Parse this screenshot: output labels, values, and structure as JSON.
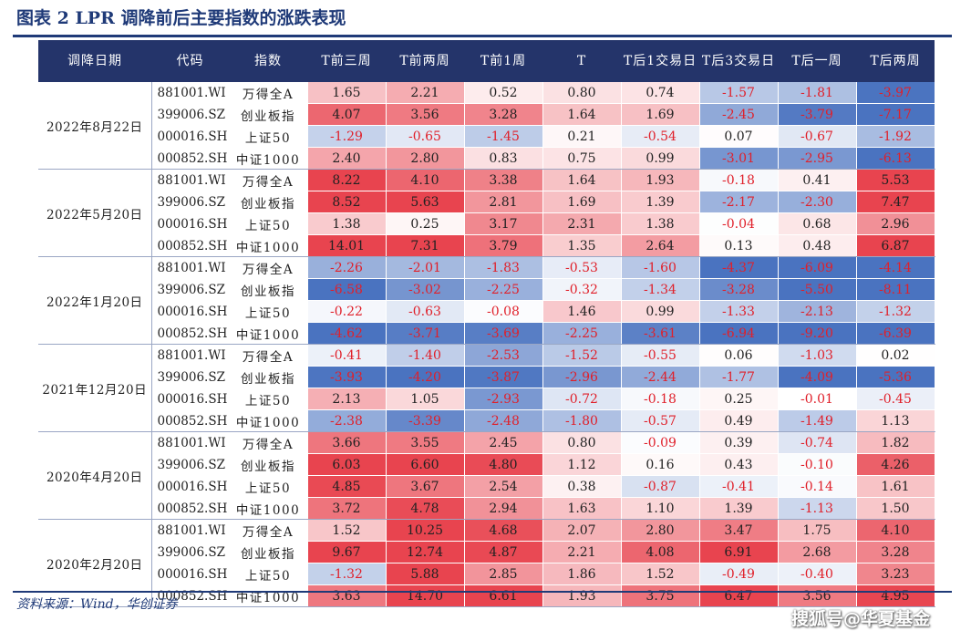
{
  "title": "图表 2  LPR 调降前后主要指数的涨跌表现",
  "headers": [
    "调降日期",
    "代码",
    "指数",
    "T前三周",
    "T前两周",
    "T前1周",
    "T",
    "T后1交易日",
    "T后3交易日",
    "T后一周",
    "T后两周"
  ],
  "groups": [
    {
      "date": "2022年8月22日",
      "rows": [
        {
          "code": "881001.WI",
          "name": "万得全A",
          "values": [
            "1.65",
            "2.21",
            "0.52",
            "0.80",
            "0.74",
            "-1.57",
            "-1.81",
            "-3.97"
          ]
        },
        {
          "code": "399006.SZ",
          "name": "创业板指",
          "values": [
            "4.07",
            "3.56",
            "3.28",
            "1.64",
            "1.69",
            "-2.45",
            "-3.79",
            "-7.17"
          ]
        },
        {
          "code": "000016.SH",
          "name": "上证50",
          "values": [
            "-1.29",
            "-0.65",
            "-1.45",
            "0.21",
            "-0.54",
            "0.07",
            "-0.67",
            "-1.92"
          ]
        },
        {
          "code": "000852.SH",
          "name": "中证1000",
          "values": [
            "2.40",
            "2.80",
            "0.83",
            "0.75",
            "0.99",
            "-3.01",
            "-2.95",
            "-6.13"
          ]
        }
      ]
    },
    {
      "date": "2022年5月20日",
      "rows": [
        {
          "code": "881001.WI",
          "name": "万得全A",
          "values": [
            "8.22",
            "4.10",
            "3.38",
            "1.64",
            "1.93",
            "-0.18",
            "0.41",
            "5.53"
          ]
        },
        {
          "code": "399006.SZ",
          "name": "创业板指",
          "values": [
            "8.52",
            "5.63",
            "2.81",
            "1.69",
            "1.39",
            "-2.17",
            "-2.30",
            "7.47"
          ]
        },
        {
          "code": "000016.SH",
          "name": "上证50",
          "values": [
            "1.38",
            "0.25",
            "3.17",
            "2.31",
            "1.38",
            "-0.04",
            "0.68",
            "2.96"
          ]
        },
        {
          "code": "000852.SH",
          "name": "中证1000",
          "values": [
            "14.01",
            "7.31",
            "3.79",
            "1.35",
            "2.64",
            "0.13",
            "0.48",
            "6.87"
          ]
        }
      ]
    },
    {
      "date": "2022年1月20日",
      "rows": [
        {
          "code": "881001.WI",
          "name": "万得全A",
          "values": [
            "-2.26",
            "-2.01",
            "-1.83",
            "-0.53",
            "-1.60",
            "-4.37",
            "-6.09",
            "-4.14"
          ]
        },
        {
          "code": "399006.SZ",
          "name": "创业板指",
          "values": [
            "-6.58",
            "-3.02",
            "-2.25",
            "-0.32",
            "-1.34",
            "-3.28",
            "-5.50",
            "-8.11"
          ]
        },
        {
          "code": "000016.SH",
          "name": "上证50",
          "values": [
            "-0.22",
            "-0.63",
            "-0.08",
            "1.46",
            "0.99",
            "-1.33",
            "-2.13",
            "-1.32"
          ]
        },
        {
          "code": "000852.SH",
          "name": "中证1000",
          "values": [
            "-4.62",
            "-3.71",
            "-3.69",
            "-2.25",
            "-3.61",
            "-6.94",
            "-9.20",
            "-6.39"
          ]
        }
      ]
    },
    {
      "date": "2021年12月20日",
      "rows": [
        {
          "code": "881001.WI",
          "name": "万得全A",
          "values": [
            "-0.41",
            "-1.40",
            "-2.53",
            "-1.52",
            "-0.55",
            "0.06",
            "-1.03",
            "0.02"
          ]
        },
        {
          "code": "399006.SZ",
          "name": "创业板指",
          "values": [
            "-3.93",
            "-4.20",
            "-3.87",
            "-2.96",
            "-2.44",
            "-1.77",
            "-4.09",
            "-5.36"
          ]
        },
        {
          "code": "000016.SH",
          "name": "上证50",
          "values": [
            "2.13",
            "1.05",
            "-2.93",
            "-0.72",
            "-0.18",
            "0.25",
            "-0.01",
            "-0.45"
          ]
        },
        {
          "code": "000852.SH",
          "name": "中证1000",
          "values": [
            "-2.38",
            "-3.39",
            "-2.48",
            "-1.80",
            "-0.57",
            "0.49",
            "-1.49",
            "1.13"
          ]
        }
      ]
    },
    {
      "date": "2020年4月20日",
      "rows": [
        {
          "code": "881001.WI",
          "name": "万得全A",
          "values": [
            "3.66",
            "3.55",
            "2.45",
            "0.80",
            "-0.09",
            "0.39",
            "-0.74",
            "1.82"
          ]
        },
        {
          "code": "399006.SZ",
          "name": "创业板指",
          "values": [
            "6.03",
            "6.60",
            "4.80",
            "1.12",
            "0.16",
            "0.43",
            "-0.10",
            "4.26"
          ]
        },
        {
          "code": "000016.SH",
          "name": "上证50",
          "values": [
            "4.85",
            "3.67",
            "2.54",
            "0.38",
            "-0.87",
            "-0.41",
            "-0.14",
            "1.61"
          ]
        },
        {
          "code": "000852.SH",
          "name": "中证1000",
          "values": [
            "3.72",
            "4.78",
            "2.94",
            "1.63",
            "1.10",
            "1.39",
            "-1.13",
            "1.50"
          ]
        }
      ]
    },
    {
      "date": "2020年2月20日",
      "rows": [
        {
          "code": "881001.WI",
          "name": "万得全A",
          "values": [
            "1.52",
            "10.25",
            "4.68",
            "2.07",
            "2.80",
            "3.47",
            "1.75",
            "4.10"
          ]
        },
        {
          "code": "399006.SZ",
          "name": "创业板指",
          "values": [
            "9.67",
            "12.74",
            "4.87",
            "2.21",
            "4.08",
            "6.91",
            "2.68",
            "3.28"
          ]
        },
        {
          "code": "000016.SH",
          "name": "上证50",
          "values": [
            "-1.32",
            "5.88",
            "2.85",
            "1.86",
            "1.52",
            "-0.49",
            "-0.40",
            "3.23"
          ]
        },
        {
          "code": "000852.SH",
          "name": "中证1000",
          "values": [
            "3.63",
            "14.70",
            "6.61",
            "1.93",
            "3.75",
            "6.47",
            "3.56",
            "4.95"
          ]
        }
      ]
    }
  ],
  "source": "资料来源：Wind，华创证券",
  "watermark": "搜狐号@华夏基金",
  "colors": {
    "header_bg": "#24346a",
    "title": "#1f3a78",
    "positive": "#e8444f",
    "negative": "#4a73c0",
    "negative_text": "#e0202a"
  }
}
